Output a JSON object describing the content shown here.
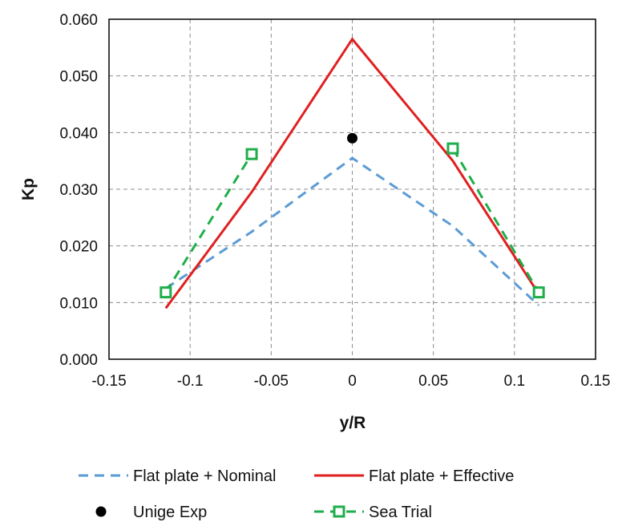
{
  "chart_data": {
    "type": "line",
    "xlabel": "y/R",
    "ylabel": "Kp",
    "xlim": [
      -0.15,
      0.15
    ],
    "ylim": [
      0.0,
      0.06
    ],
    "xticks": [
      "-0.15",
      "-0.1",
      "-0.05",
      "0",
      "0.05",
      "0.1",
      "0.15"
    ],
    "yticks": [
      "0.000",
      "0.010",
      "0.020",
      "0.030",
      "0.040",
      "0.050",
      "0.060"
    ],
    "grid": true,
    "legend_position": "bottom",
    "series": [
      {
        "name": "Flat plate + Nominal",
        "style": "dashed",
        "marker": "none",
        "color": "#5b9bd5",
        "x": [
          -0.115,
          -0.062,
          0.0,
          0.062,
          0.115
        ],
        "y": [
          0.0125,
          0.0225,
          0.0355,
          0.0235,
          0.0095
        ]
      },
      {
        "name": "Flat plate + Effective",
        "style": "solid",
        "marker": "none",
        "color": "#e02020",
        "x": [
          -0.115,
          -0.062,
          0.0,
          0.062,
          0.115
        ],
        "y": [
          0.009,
          0.0295,
          0.0565,
          0.035,
          0.0115
        ]
      },
      {
        "name": "Unige Exp",
        "style": "none",
        "marker": "circle",
        "color": "#000000",
        "x": [
          0.0
        ],
        "y": [
          0.039
        ]
      },
      {
        "name": "Sea Trial",
        "style": "dashed",
        "marker": "square",
        "color": "#1fae4b",
        "segments": [
          {
            "x": [
              -0.115,
              -0.062
            ],
            "y": [
              0.0118,
              0.0362
            ]
          },
          {
            "x": [
              0.062,
              0.115
            ],
            "y": [
              0.0372,
              0.0118
            ]
          }
        ]
      }
    ]
  }
}
